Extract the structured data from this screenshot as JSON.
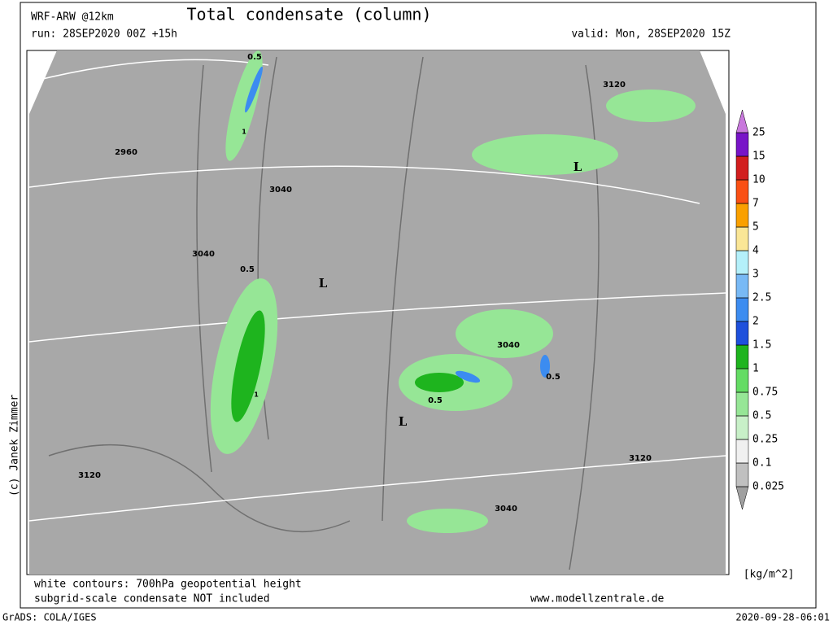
{
  "header": {
    "model": "WRF-ARW @12km",
    "title": "Total condensate (column)",
    "run": "run: 28SEP2020 00Z +15h",
    "valid": "valid: Mon, 28SEP2020 15Z"
  },
  "colorbar": {
    "levels": [
      0.025,
      0.1,
      0.25,
      0.5,
      0.75,
      1,
      1.5,
      2,
      2.5,
      3,
      4,
      5,
      7,
      10,
      15,
      25
    ],
    "colors": [
      "#a0a0a0",
      "#c0c0c0",
      "#f0f0f0",
      "#c8f0c8",
      "#96e696",
      "#64dc64",
      "#1eb41e",
      "#1e50dc",
      "#3c8cf0",
      "#78b9f5",
      "#b4f0fa",
      "#fae696",
      "#faa000",
      "#fa5014",
      "#d21e1e",
      "#7814c8",
      "#c878dc"
    ],
    "unit": "[kg/m^2]"
  },
  "map_labels": [
    "2960",
    "3040",
    "3040",
    "3040",
    "3120",
    "3120",
    "3120",
    "3040",
    "L",
    "L",
    "L",
    "0.5",
    "1",
    "0.5",
    "1",
    "0.5",
    "0.5"
  ],
  "credit": "(c) Janek Zimmer",
  "footer": {
    "note1": "white contours: 700hPa geopotential height",
    "note2": "subgrid-scale condensate NOT included",
    "site": "www.modellzentrale.de",
    "software": "GrADS: COLA/IGES",
    "timestamp": "2020-09-28-06:01"
  }
}
